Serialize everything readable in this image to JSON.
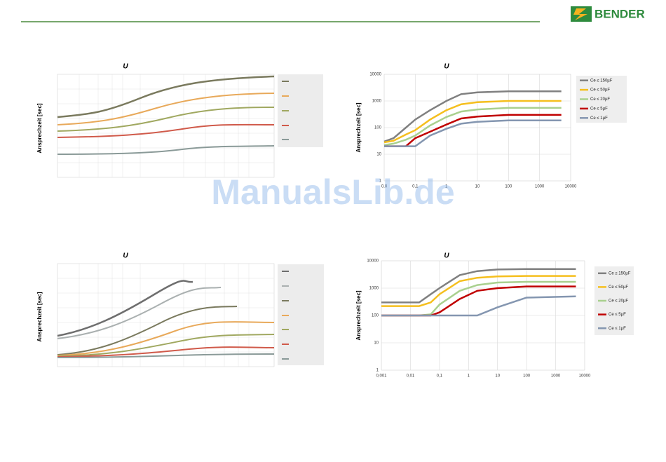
{
  "header": {
    "logo": "BENDER"
  },
  "watermark": "ManualsLib.de",
  "panels": [
    {
      "title": "U",
      "ylabel": "Ansprechzeit [sec]"
    },
    {
      "title": "U",
      "ylabel": "Ansprechzeit [sec]"
    }
  ],
  "chart_data": [
    {
      "type": "line",
      "title": "U",
      "ylabel": "Ansprechzeit [sec]",
      "xlog": true,
      "ylog": true,
      "grid": true,
      "xlim": [
        0.01,
        10000
      ],
      "ylim": [
        1,
        10000
      ],
      "xticks": [
        {
          "value": 0.01,
          "label": "0,0"
        },
        {
          "value": 0.1,
          "label": "0,1"
        },
        1,
        10,
        100,
        1000,
        10000
      ],
      "yticks": [
        1,
        10,
        100,
        1000,
        10000
      ],
      "x": [
        0.01,
        0.02,
        0.05,
        0.1,
        0.3,
        1,
        3,
        10,
        100,
        5000
      ],
      "series": [
        {
          "name": "Ce ≤ 150µF",
          "color": "#808080",
          "values": [
            30,
            40,
            100,
            200,
            450,
            1000,
            1800,
            2100,
            2300,
            2300
          ]
        },
        {
          "name": "Ce ≤ 50µF",
          "color": "#f5bf1e",
          "values": [
            28,
            32,
            55,
            80,
            200,
            450,
            750,
            900,
            1000,
            1000
          ]
        },
        {
          "name": "Ce ≤ 20µF",
          "color": "#a9d08e",
          "values": [
            22,
            25,
            35,
            50,
            120,
            250,
            400,
            480,
            550,
            550
          ]
        },
        {
          "name": "Ce ≤ 5µF",
          "color": "#c00000",
          "values": [
            20,
            20,
            20,
            40,
            70,
            130,
            220,
            260,
            300,
            300
          ]
        },
        {
          "name": "Ce ≤ 1µF",
          "color": "#8496b0",
          "values": [
            20,
            20,
            20,
            20,
            50,
            90,
            140,
            165,
            185,
            185
          ]
        }
      ]
    },
    {
      "type": "line",
      "title": "U",
      "ylabel": "Ansprechzeit [sec]",
      "xlog": true,
      "ylog": true,
      "grid": true,
      "xlim": [
        0.001,
        10000
      ],
      "ylim": [
        1,
        10000
      ],
      "xticks": [
        {
          "value": 0.001,
          "label": "0,001"
        },
        {
          "value": 0.01,
          "label": "0,01"
        },
        {
          "value": 0.1,
          "label": "0,1"
        },
        1,
        10,
        100,
        1000,
        10000
      ],
      "yticks": [
        1,
        10,
        100,
        1000,
        10000
      ],
      "x": [
        0.001,
        0.02,
        0.05,
        0.1,
        0.5,
        2,
        10,
        100,
        5000
      ],
      "series": [
        {
          "name": "Ce ≤ 150µF",
          "color": "#808080",
          "values": [
            300,
            300,
            600,
            1000,
            3000,
            4200,
            4800,
            5000,
            5000
          ]
        },
        {
          "name": "Ce ≤ 50µF",
          "color": "#f5bf1e",
          "values": [
            220,
            220,
            300,
            600,
            1800,
            2400,
            2700,
            2800,
            2800
          ]
        },
        {
          "name": "Ce ≤ 20µF",
          "color": "#a9d08e",
          "values": [
            100,
            100,
            110,
            250,
            800,
            1300,
            1600,
            1700,
            1700
          ]
        },
        {
          "name": "Ce ≤ 5µF",
          "color": "#c00000",
          "values": [
            100,
            100,
            100,
            130,
            400,
            800,
            1000,
            1150,
            1150
          ]
        },
        {
          "name": "Ce ≤ 1µF",
          "color": "#8496b0",
          "values": [
            100,
            100,
            100,
            100,
            100,
            100,
            200,
            450,
            500
          ]
        }
      ]
    }
  ]
}
